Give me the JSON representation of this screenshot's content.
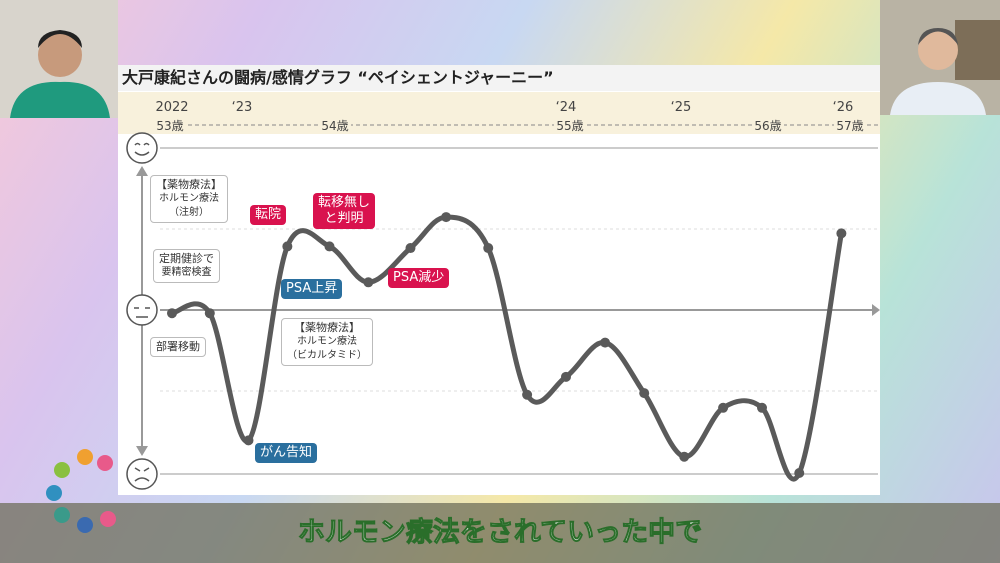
{
  "slide_title": "大戸康紀さんの闘病/感情グラフ “ペイシェントジャーニー”",
  "ages": [
    "53歳",
    "54歳",
    "55歳",
    "56歳",
    "57歳"
  ],
  "annotations": [
    {
      "lines": [
        "【薬物療法】",
        "ホルモン療法",
        "（注射）"
      ]
    },
    {
      "lines": [
        "定期健診で",
        "要精密検査"
      ]
    },
    {
      "lines": [
        "部署移動"
      ]
    },
    {
      "lines": [
        "転院"
      ]
    },
    {
      "lines": [
        "転移無し",
        "と判明"
      ]
    },
    {
      "lines": [
        "PSA上昇"
      ]
    },
    {
      "lines": [
        "PSA減少"
      ]
    },
    {
      "lines": [
        "【薬物療法】",
        "ホルモン療法",
        "（ビカルタミド）"
      ]
    },
    {
      "lines": [
        "がん告知"
      ]
    }
  ],
  "caption": "ホルモン療法をされていった中で",
  "chart_data": {
    "type": "line",
    "x": [
      2022.0,
      2022.54,
      2023.02,
      2023.14,
      2023.27,
      2023.39,
      2023.52,
      2023.63,
      2023.76,
      2023.88,
      2024.0,
      2024.34,
      2024.68,
      2025.02,
      2025.26,
      2025.5,
      2025.73,
      2025.99
    ],
    "series": [
      {
        "name": "感情",
        "color": "#5a5a5a",
        "values": [
          -0.02,
          -0.02,
          -0.8,
          0.39,
          0.39,
          0.17,
          0.38,
          0.57,
          0.38,
          -0.52,
          -0.41,
          -0.2,
          -0.51,
          -0.9,
          -0.6,
          -0.6,
          -1.0,
          0.47
        ]
      }
    ],
    "xticks": [
      2022,
      {
        "value": 2023,
        "label": "‘23"
      },
      {
        "value": 2024,
        "label": "‘24"
      },
      {
        "value": 2025,
        "label": "‘25"
      },
      {
        "value": 2026,
        "label": "‘26"
      }
    ],
    "ylim": [
      -1,
      1
    ]
  }
}
